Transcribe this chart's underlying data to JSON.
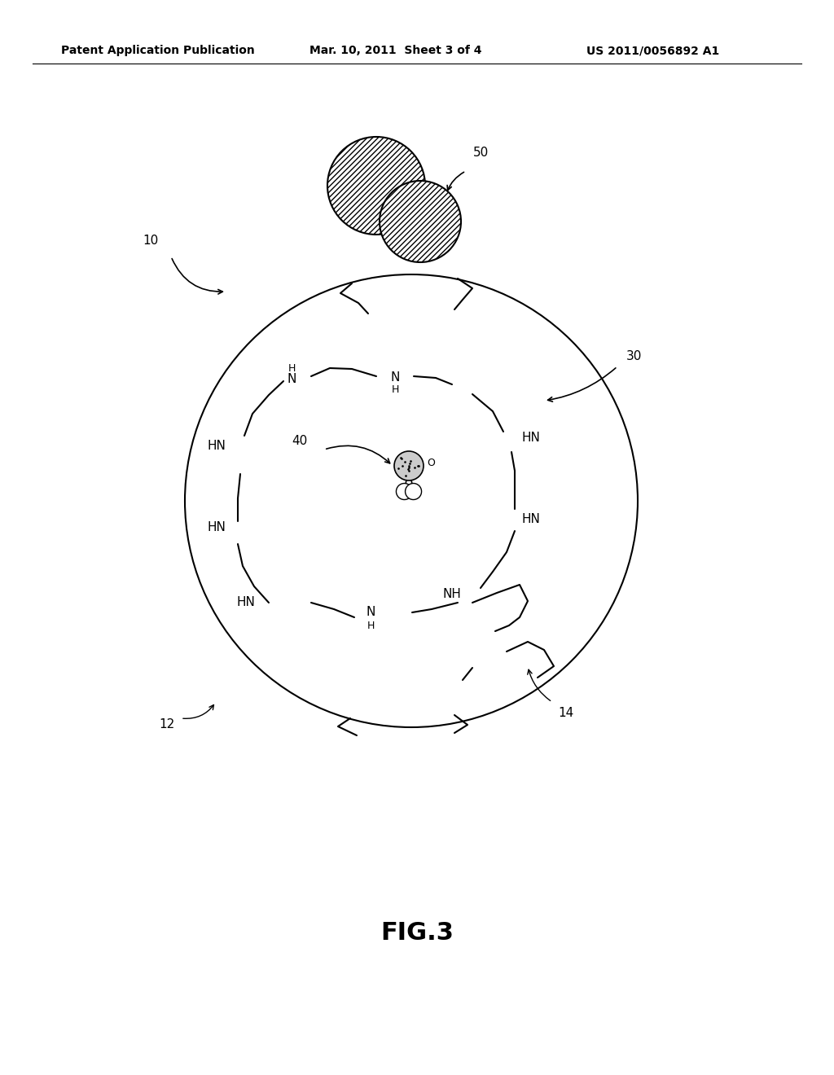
{
  "bg_color": "#ffffff",
  "header_left": "Patent Application Publication",
  "header_mid": "Mar. 10, 2011  Sheet 3 of 4",
  "header_right": "US 2011/0056892 A1",
  "header_fontsize": 11,
  "fig_label": "FIG.3"
}
